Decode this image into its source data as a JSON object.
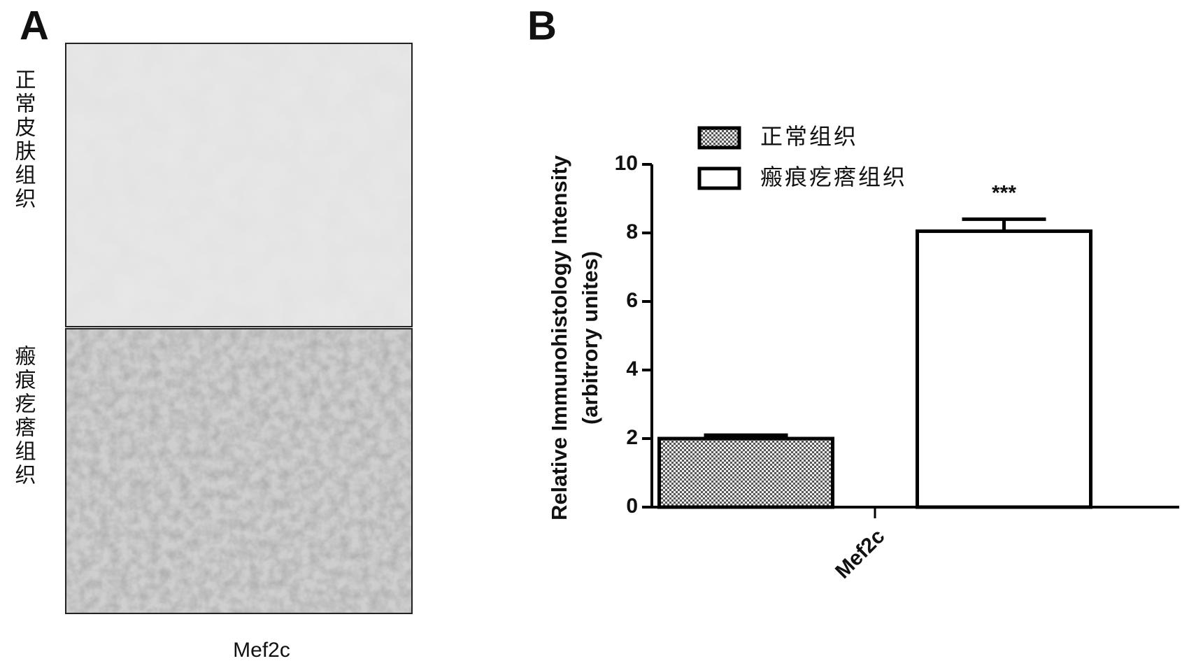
{
  "panel_a": {
    "label": "A",
    "row_labels": [
      "正常皮肤组织",
      "瘢痕疙瘩组织"
    ],
    "caption": "Mef2c"
  },
  "chart_data": {
    "type": "bar",
    "panel_label": "B",
    "y_label": "Relative Immunohistology Intensity",
    "y_label_2": "(arbitrory unites)",
    "categories": [
      "Mef2c"
    ],
    "series": [
      {
        "name": "正常组织",
        "color": "#ffffff",
        "pattern": "checker",
        "values": [
          2.0
        ],
        "errors": [
          0.1
        ]
      },
      {
        "name": "瘢痕疙瘩组织",
        "color": "#ffffff",
        "values": [
          8.05
        ],
        "errors": [
          0.35
        ],
        "annotations": [
          "***"
        ]
      }
    ],
    "ylim": [
      0,
      10
    ],
    "yticks": [
      0,
      2,
      4,
      6,
      8,
      10
    ]
  }
}
